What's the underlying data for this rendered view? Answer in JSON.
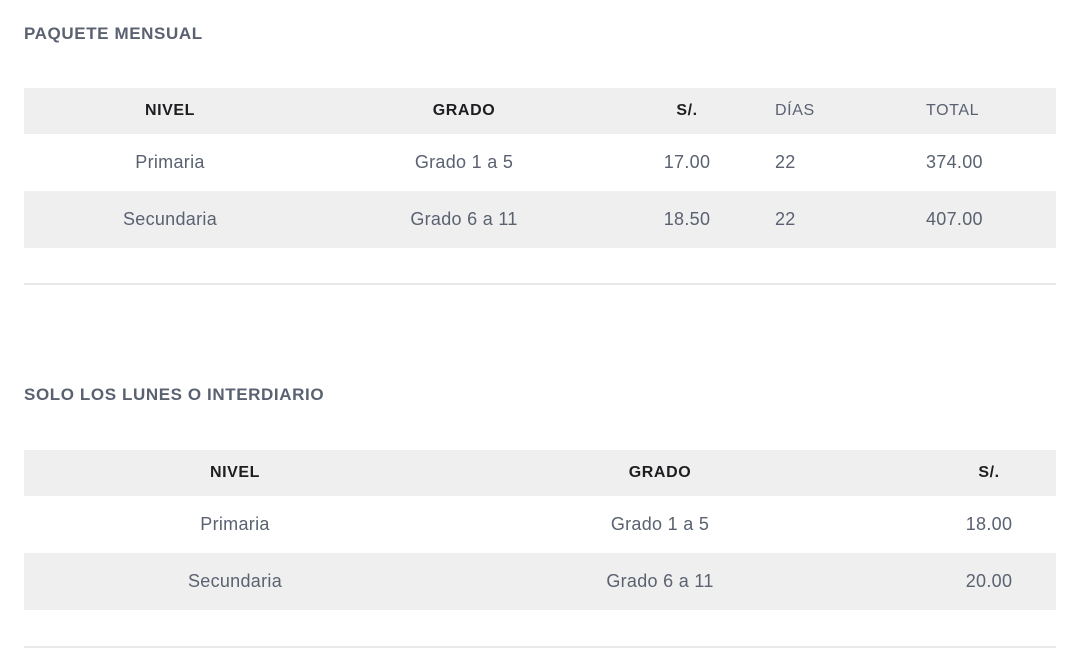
{
  "colors": {
    "page_background": "#ffffff",
    "title_text": "#5a6170",
    "header_dark_text": "#1d1e20",
    "header_muted_text": "#5a6170",
    "body_text": "#5a6170",
    "header_row_background": "#f0eff0",
    "alt_row_background": "#f0eff0",
    "divider": "#e9e9e9"
  },
  "sections": [
    {
      "title": "PAQUETE MENSUAL",
      "columns": [
        {
          "label": "NIVEL"
        },
        {
          "label": "GRADO"
        },
        {
          "label": "S/."
        },
        {
          "label": "DÍAS"
        },
        {
          "label": "TOTAL"
        }
      ],
      "rows": [
        [
          "Primaria",
          "Grado 1 a 5",
          "17.00",
          "22",
          "374.00"
        ],
        [
          "Secundaria",
          "Grado 6 a 11",
          "18.50",
          "22",
          "407.00"
        ]
      ]
    },
    {
      "title": "SOLO LOS LUNES O INTERDIARIO",
      "columns": [
        {
          "label": "NIVEL"
        },
        {
          "label": "GRADO"
        },
        {
          "label": "S/."
        }
      ],
      "rows": [
        [
          "Primaria",
          "Grado 1 a 5",
          "18.00"
        ],
        [
          "Secundaria",
          "Grado 6 a 11",
          "20.00"
        ]
      ]
    }
  ]
}
